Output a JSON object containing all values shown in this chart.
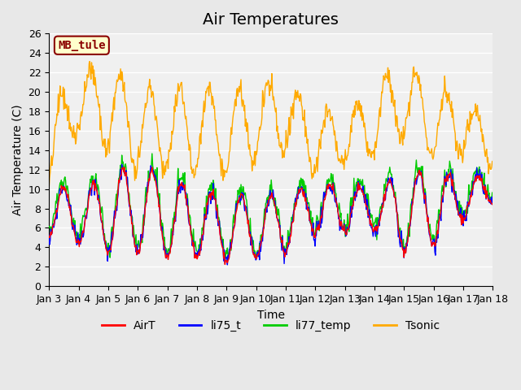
{
  "title": "Air Temperatures",
  "xlabel": "Time",
  "ylabel": "Air Temperature (C)",
  "ylim": [
    0,
    26
  ],
  "yticks": [
    0,
    2,
    4,
    6,
    8,
    10,
    12,
    14,
    16,
    18,
    20,
    22,
    24,
    26
  ],
  "series_colors": {
    "AirT": "#ff0000",
    "li75_t": "#0000ff",
    "li77_temp": "#00cc00",
    "Tsonic": "#ffaa00"
  },
  "legend_labels": [
    "AirT",
    "li75_t",
    "li77_temp",
    "Tsonic"
  ],
  "annotation_text": "MB_tule",
  "annotation_box_color": "#ffffcc",
  "annotation_box_edge": "#8B0000",
  "annotation_text_color": "#8B0000",
  "background_color": "#e8e8e8",
  "plot_bg_color": "#f0f0f0",
  "grid_color": "#ffffff",
  "title_fontsize": 14,
  "axis_label_fontsize": 10,
  "tick_label_fontsize": 9,
  "legend_fontsize": 10,
  "n_days": 15,
  "n_per_day": 48,
  "x_tick_days": [
    0,
    1,
    2,
    3,
    4,
    5,
    6,
    7,
    8,
    9,
    10,
    11,
    12,
    13,
    14,
    15
  ],
  "x_tick_labels": [
    "Jan 3",
    "Jan 4",
    "Jan 5",
    "Jan 6",
    "Jan 7",
    "Jan 8",
    "Jan 9",
    "Jan 10",
    "Jan 11",
    "Jan 12",
    "Jan 13",
    "Jan 14",
    "Jan 15",
    "Jan 16",
    "Jan 17",
    "Jan 18"
  ]
}
